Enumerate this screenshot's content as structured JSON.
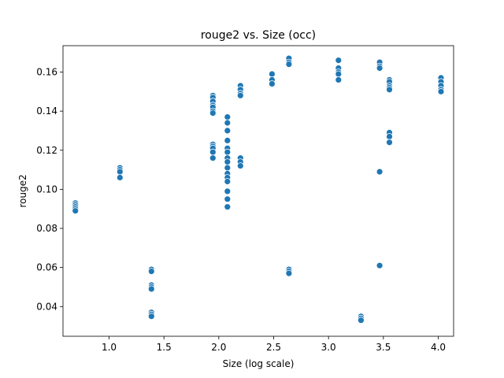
{
  "chart_data": {
    "type": "scatter",
    "title": "rouge2 vs. Size (occ)",
    "xlabel": "Size (log scale)",
    "ylabel": "rouge2",
    "xlim": [
      0.58,
      4.14
    ],
    "ylim": [
      0.0248,
      0.1735
    ],
    "xticks": [
      1.0,
      1.5,
      2.0,
      2.5,
      3.0,
      3.5,
      4.0
    ],
    "xtick_labels": [
      "1.0",
      "1.5",
      "2.0",
      "2.5",
      "3.0",
      "3.5",
      "4.0"
    ],
    "yticks": [
      0.04,
      0.06,
      0.08,
      0.1,
      0.12,
      0.14,
      0.16
    ],
    "ytick_labels": [
      "0.04",
      "0.06",
      "0.08",
      "0.10",
      "0.12",
      "0.14",
      "0.16"
    ],
    "grid": false,
    "marker_color": "#1f77b4",
    "series": [
      {
        "points": [
          [
            0.693,
            0.093
          ],
          [
            0.693,
            0.092
          ],
          [
            0.693,
            0.091
          ],
          [
            0.693,
            0.09
          ],
          [
            0.693,
            0.089
          ],
          [
            1.099,
            0.111
          ],
          [
            1.099,
            0.11
          ],
          [
            1.099,
            0.109
          ],
          [
            1.099,
            0.106
          ],
          [
            1.386,
            0.059
          ],
          [
            1.386,
            0.058
          ],
          [
            1.386,
            0.051
          ],
          [
            1.386,
            0.05
          ],
          [
            1.386,
            0.049
          ],
          [
            1.386,
            0.037
          ],
          [
            1.386,
            0.036
          ],
          [
            1.386,
            0.035
          ],
          [
            1.946,
            0.148
          ],
          [
            1.946,
            0.147
          ],
          [
            1.946,
            0.145
          ],
          [
            1.946,
            0.143
          ],
          [
            1.946,
            0.142
          ],
          [
            1.946,
            0.14
          ],
          [
            1.946,
            0.139
          ],
          [
            1.946,
            0.123
          ],
          [
            1.946,
            0.122
          ],
          [
            1.946,
            0.121
          ],
          [
            1.946,
            0.119
          ],
          [
            1.946,
            0.116
          ],
          [
            2.079,
            0.137
          ],
          [
            2.079,
            0.134
          ],
          [
            2.079,
            0.13
          ],
          [
            2.079,
            0.125
          ],
          [
            2.079,
            0.121
          ],
          [
            2.079,
            0.119
          ],
          [
            2.079,
            0.116
          ],
          [
            2.079,
            0.114
          ],
          [
            2.079,
            0.111
          ],
          [
            2.079,
            0.108
          ],
          [
            2.079,
            0.106
          ],
          [
            2.079,
            0.104
          ],
          [
            2.079,
            0.099
          ],
          [
            2.079,
            0.095
          ],
          [
            2.079,
            0.091
          ],
          [
            2.197,
            0.153
          ],
          [
            2.197,
            0.151
          ],
          [
            2.197,
            0.149
          ],
          [
            2.197,
            0.148
          ],
          [
            2.197,
            0.116
          ],
          [
            2.197,
            0.114
          ],
          [
            2.197,
            0.112
          ],
          [
            2.485,
            0.159
          ],
          [
            2.485,
            0.156
          ],
          [
            2.485,
            0.154
          ],
          [
            2.639,
            0.167
          ],
          [
            2.639,
            0.165
          ],
          [
            2.639,
            0.164
          ],
          [
            2.639,
            0.059
          ],
          [
            2.639,
            0.058
          ],
          [
            2.639,
            0.057
          ],
          [
            3.091,
            0.166
          ],
          [
            3.091,
            0.162
          ],
          [
            3.091,
            0.16
          ],
          [
            3.091,
            0.159
          ],
          [
            3.091,
            0.156
          ],
          [
            3.296,
            0.035
          ],
          [
            3.296,
            0.034
          ],
          [
            3.296,
            0.033
          ],
          [
            3.466,
            0.165
          ],
          [
            3.466,
            0.163
          ],
          [
            3.466,
            0.162
          ],
          [
            3.466,
            0.109
          ],
          [
            3.466,
            0.061
          ],
          [
            3.555,
            0.156
          ],
          [
            3.555,
            0.155
          ],
          [
            3.555,
            0.153
          ],
          [
            3.555,
            0.152
          ],
          [
            3.555,
            0.151
          ],
          [
            3.555,
            0.129
          ],
          [
            3.555,
            0.127
          ],
          [
            3.555,
            0.124
          ],
          [
            4.025,
            0.157
          ],
          [
            4.025,
            0.155
          ],
          [
            4.025,
            0.153
          ],
          [
            4.025,
            0.151
          ],
          [
            4.025,
            0.15
          ]
        ]
      }
    ]
  }
}
